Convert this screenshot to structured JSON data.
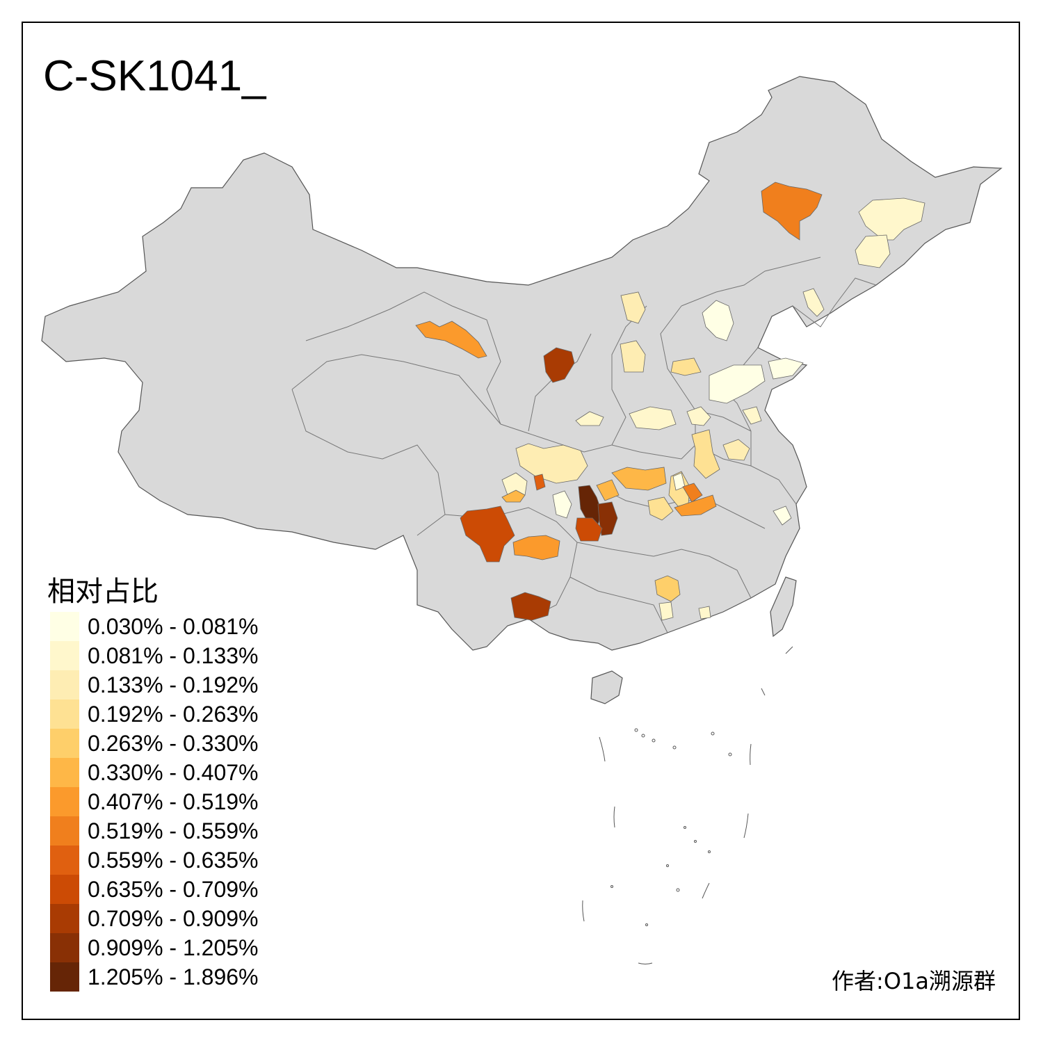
{
  "title": "C-SK1041_",
  "legend": {
    "title": "相对占比",
    "items": [
      {
        "label": "0.030% - 0.081%",
        "color": "#FFFFE5"
      },
      {
        "label": "0.081% - 0.133%",
        "color": "#FFF7CC"
      },
      {
        "label": "0.133% - 0.192%",
        "color": "#FEEDB3"
      },
      {
        "label": "0.192% - 0.263%",
        "color": "#FEE193"
      },
      {
        "label": "0.263% - 0.330%",
        "color": "#FECF6A"
      },
      {
        "label": "0.330% - 0.407%",
        "color": "#FEB747"
      },
      {
        "label": "0.407% - 0.519%",
        "color": "#FB9A2C"
      },
      {
        "label": "0.519% - 0.559%",
        "color": "#F07F1D"
      },
      {
        "label": "0.559% - 0.635%",
        "color": "#E06010"
      },
      {
        "label": "0.635% - 0.709%",
        "color": "#CC4B05"
      },
      {
        "label": "0.709% - 0.909%",
        "color": "#A93B03"
      },
      {
        "label": "0.909% - 1.205%",
        "color": "#893005"
      },
      {
        "label": "1.205% - 1.896%",
        "color": "#662506"
      }
    ]
  },
  "author": "作者:O1a溯源群",
  "colors": {
    "base_land": "#D9D9D9",
    "border": "#555555"
  }
}
